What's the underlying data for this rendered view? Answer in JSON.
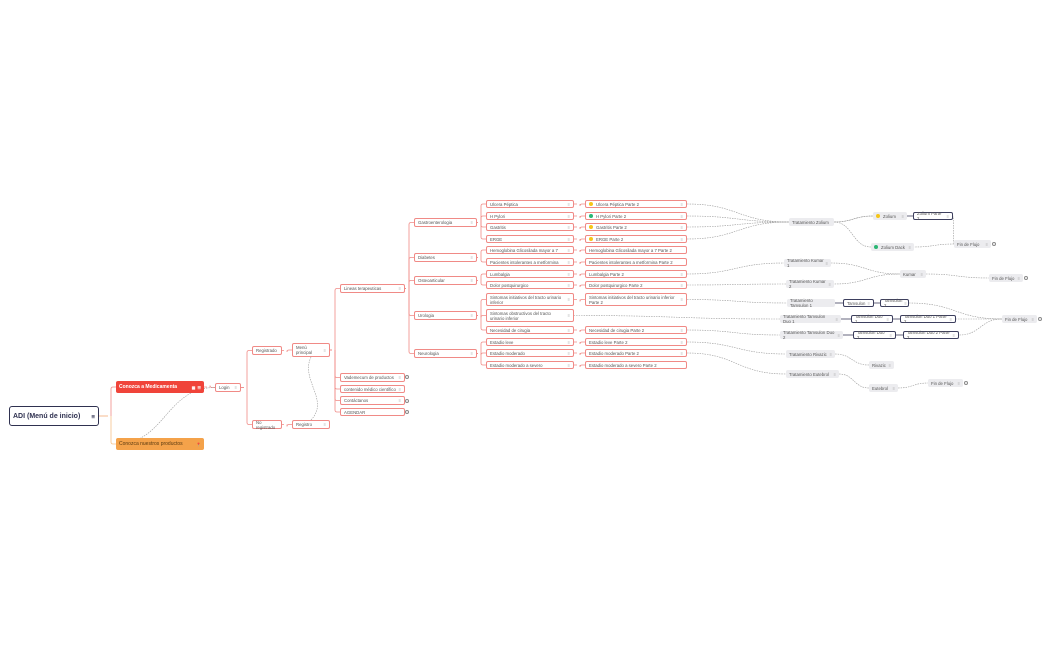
{
  "colors": {
    "primary": "#f0443a",
    "secondary": "#f4a24a",
    "branch": "#f08a86",
    "root_border": "#2f3150",
    "status_yellow": "#f5c518",
    "status_green": "#2bb673"
  },
  "nodes": {
    "root": "ADI (Menú de inicio)",
    "medicamenta": "Conozca a Medicamenta",
    "productos": "Conozca nuestros productos",
    "login": "Login",
    "registrado": "Registrado",
    "no_registrado": "No registrado",
    "menu_principal": "Menú principal",
    "registro": "Registro",
    "lineas": "Lineas terapeuticas",
    "vademecum": "Vademecum de productos",
    "contenido": "contenido médico científico",
    "contactanos": "Contáctanos",
    "agendar": "AGENDAR",
    "gastro": "Gastroenterologia",
    "diabetes": "Diabetes",
    "osteo": "Osteoarticular",
    "urologia": "Urologia",
    "neurologia": "Neurologia",
    "ulcera": "Ulcera Péptica",
    "hpylori": "H Pylori",
    "gastritis": "Gastritis",
    "erge": "ERGE",
    "hemoglobina": "Hemoglobina Glicosilada mayor a 7",
    "pacientes": "Pacientes intolerantes a metformina",
    "lumbalgia": "Lumbalgia",
    "dolor": "Dolor postquirurgico",
    "sint_ini": "Sintomas initiativos del tracto urinario inferior",
    "sint_obs": "Sintomas obstructivos del tracto urinario inferior",
    "cirugia": "Necesidad de cirugia",
    "leve": "Estadio leve",
    "moderado": "Estadio moderado",
    "severo": "Estadio moderado a severo",
    "ulcera2": "Ulcera Péptica Parte 2",
    "hpylori2": "H Pylori Parte 2",
    "gastritis2": "Gastritis Parte 2",
    "erge2": "ERGE Parte 2",
    "hemoglobina2": "Hemoglobina Glicosilada mayor a 7 Parte 2",
    "pacientes2": "Pacientes intolerantes a metformina Parte 2",
    "lumbalgia2": "Lumbalgia Parte 2",
    "dolor2": "Dolor postquirurgico Parte 2",
    "sint_ini2": "Sintomas initiativos del tracto urinario inferior Parte 2",
    "cirugia2": "Necesidad de cirugia Parte 2",
    "leve2": "Estadio leve Parte 2",
    "moderado2": "Estadio moderado Parte 2",
    "severo2": "Estadio moderado a severo Parte 2",
    "trat_zolium": "Tratamiento Zolium",
    "zolium": "Zolium",
    "zolium2": "Zolium Parte 2",
    "zolium_dack": "Zolium Dack",
    "fin1": "Fin de Flujo",
    "trat_kumar1": "Tratamiento Kumar 1",
    "kumar": "Kumar",
    "trat_kumar2": "Tratamiento Kumar 2",
    "fin2": "Fin de Flujo",
    "trat_tams1": "Tratamiento Tamsulon 1",
    "tams": "Tamsulon",
    "tams2": "Tamsulon 2",
    "trat_tamsduo1": "Tratamiento Tamsulon Duo 1",
    "tamsduo1": "Tamsulon Duo 1",
    "tamsduo1b": "Tamsulon Duo 1 Parte 2",
    "fin3": "Fin de Flujo",
    "trat_tamsduo2": "Tratamiento Tamsulon Duo 2",
    "tamsduo2": "Tamsulon Duo 2",
    "tamsduo2b": "Tamsulon Duo 2 Parte 2",
    "trat_rivazic": "Tratamiento Rivazic",
    "rivazic": "Rivazic",
    "trat_eutebrol": "Tratamiento Eutebrol",
    "eutebrol": "Eutebrol",
    "fin4": "Fin de Flujo"
  },
  "status_markers": {
    "ulcera2": "yellow",
    "hpylori2": "green",
    "gastritis2": "yellow",
    "erge2": "yellow",
    "zolium": "yellow",
    "zolium_dack": "green"
  },
  "icons": {
    "note": "note-icon",
    "root": "menu-lines-icon",
    "medicamenta": "building-icon",
    "productos": "pin-icon",
    "link_end": "info-circle-icon"
  }
}
